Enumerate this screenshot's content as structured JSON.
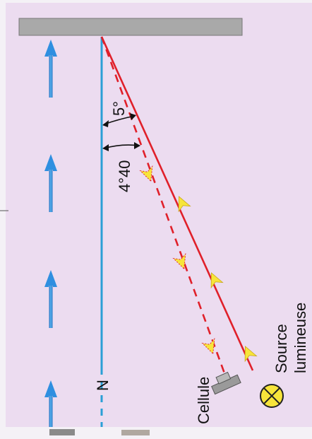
{
  "labels": {
    "angle_outer": "5°",
    "angle_inner": "4°40",
    "normal": "N",
    "cell": "Cellule",
    "source_line1": "Source",
    "source_line2": "lumineuse"
  },
  "icons": {
    "arrow": "blue-up-arrow-icon",
    "source": "light-source-icon",
    "cell": "photocell-icon"
  },
  "colors": {
    "panel": "#ecdcf0",
    "mirror": "#a9a9a9",
    "normal_line": "#2a9fd6",
    "ray": "#e0202a",
    "ray_arrow": "#f7e53a",
    "blue_arrow": "#2f8fe0"
  }
}
